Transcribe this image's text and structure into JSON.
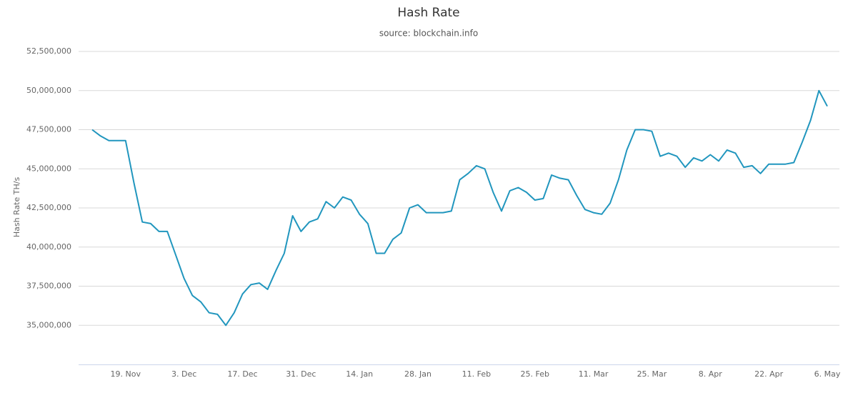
{
  "chart_data": {
    "type": "line",
    "title": "Hash Rate",
    "subtitle": "source: blockchain.info",
    "y_label": "Hash Rate TH/s",
    "color": "#2196be",
    "grid": true,
    "categories": [
      null,
      null,
      null,
      null,
      "19. Nov",
      null,
      null,
      null,
      null,
      null,
      null,
      "3. Dec",
      null,
      null,
      null,
      null,
      null,
      null,
      "17. Dec",
      null,
      null,
      null,
      null,
      null,
      null,
      "31. Dec",
      null,
      null,
      null,
      null,
      null,
      null,
      "14. Jan",
      null,
      null,
      null,
      null,
      null,
      null,
      "28. Jan",
      null,
      null,
      null,
      null,
      null,
      null,
      "11. Feb",
      null,
      null,
      null,
      null,
      null,
      null,
      "25. Feb",
      null,
      null,
      null,
      null,
      null,
      null,
      "11. Mar",
      null,
      null,
      null,
      null,
      null,
      null,
      "25. Mar",
      null,
      null,
      null,
      null,
      null,
      null,
      "8. Apr",
      null,
      null,
      null,
      null,
      null,
      null,
      "22. Apr",
      null,
      null,
      null,
      null,
      null,
      null,
      "6. May"
    ],
    "values": [
      47500000,
      47100000,
      46800000,
      46800000,
      46800000,
      44100000,
      41600000,
      41500000,
      41000000,
      41000000,
      39500000,
      38000000,
      36900000,
      36500000,
      35800000,
      35700000,
      35000000,
      35800000,
      37000000,
      37600000,
      37700000,
      37300000,
      38500000,
      39600000,
      42000000,
      41000000,
      41600000,
      41800000,
      42900000,
      42500000,
      43200000,
      43000000,
      42100000,
      41500000,
      39600000,
      39600000,
      40500000,
      40900000,
      42500000,
      42700000,
      42200000,
      42200000,
      42200000,
      42300000,
      44300000,
      44700000,
      45200000,
      45000000,
      43500000,
      42300000,
      43600000,
      43800000,
      43500000,
      43000000,
      43100000,
      44600000,
      44400000,
      44300000,
      43300000,
      42400000,
      42200000,
      42100000,
      42800000,
      44300000,
      46200000,
      47500000,
      47500000,
      47400000,
      45800000,
      46000000,
      45800000,
      45100000,
      45700000,
      45500000,
      45900000,
      45500000,
      46200000,
      46000000,
      45100000,
      45200000,
      44700000,
      45300000,
      45300000,
      45300000,
      45400000,
      46700000,
      48100000,
      50000000,
      49000000
    ],
    "ylim": [
      32500000,
      52500000
    ],
    "yticks": [
      {
        "value": 35000000,
        "label": "35,000,000"
      },
      {
        "value": 37500000,
        "label": "37,500,000"
      },
      {
        "value": 40000000,
        "label": "40,000,000"
      },
      {
        "value": 42500000,
        "label": "42,500,000"
      },
      {
        "value": 45000000,
        "label": "45,000,000"
      },
      {
        "value": 47500000,
        "label": "47,500,000"
      },
      {
        "value": 50000000,
        "label": "50,000,000"
      },
      {
        "value": 52500000,
        "label": "52,500,000"
      }
    ]
  }
}
